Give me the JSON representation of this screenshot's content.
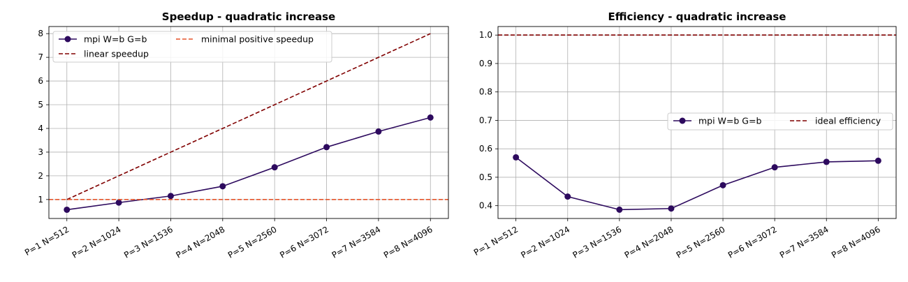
{
  "chart_data": [
    {
      "type": "line",
      "title": "Speedup - quadratic increase",
      "xlabel": "",
      "ylabel": "",
      "categories": [
        "P=1 N=512",
        "P=2 N=1024",
        "P=3 N=1536",
        "P=4 N=2048",
        "P=5 N=2560",
        "P=6 N=3072",
        "P=7 N=3584",
        "P=8 N=4096"
      ],
      "ylim": [
        0.2,
        8.3
      ],
      "yticks": [
        1,
        2,
        3,
        4,
        5,
        6,
        7,
        8
      ],
      "ytick_labels": [
        "1",
        "2",
        "3",
        "4",
        "5",
        "6",
        "7",
        "8"
      ],
      "grid": true,
      "legend_position": "top-left",
      "series": [
        {
          "name": "mpi W=b G=b",
          "style": "solid-marker",
          "color": "#2d0a5e",
          "values": [
            0.57,
            0.87,
            1.15,
            1.56,
            2.36,
            3.21,
            3.87,
            4.46
          ]
        },
        {
          "name": "linear speedup",
          "style": "dashed",
          "color": "#800000",
          "values": [
            1,
            2,
            3,
            4,
            5,
            6,
            7,
            8
          ]
        },
        {
          "name": "minimal positive speedup",
          "style": "dashed-hline",
          "color": "#e5532a",
          "value": 1
        }
      ]
    },
    {
      "type": "line",
      "title": "Efficiency - quadratic increase",
      "xlabel": "",
      "ylabel": "",
      "categories": [
        "P=1 N=512",
        "P=2 N=1024",
        "P=3 N=1536",
        "P=4 N=2048",
        "P=5 N=2560",
        "P=6 N=3072",
        "P=7 N=3584",
        "P=8 N=4096"
      ],
      "ylim": [
        0.355,
        1.03
      ],
      "yticks": [
        0.4,
        0.5,
        0.6,
        0.7,
        0.8,
        0.9,
        1.0
      ],
      "ytick_labels": [
        "0.4",
        "0.5",
        "0.6",
        "0.7",
        "0.8",
        "0.9",
        "1.0"
      ],
      "grid": true,
      "legend_position": "center-right",
      "series": [
        {
          "name": "mpi W=b G=b",
          "style": "solid-marker",
          "color": "#2d0a5e",
          "values": [
            0.57,
            0.432,
            0.386,
            0.39,
            0.472,
            0.535,
            0.554,
            0.558
          ]
        },
        {
          "name": "ideal efficiency",
          "style": "dashed-hline",
          "color": "#800000",
          "value": 1.0
        }
      ]
    }
  ]
}
